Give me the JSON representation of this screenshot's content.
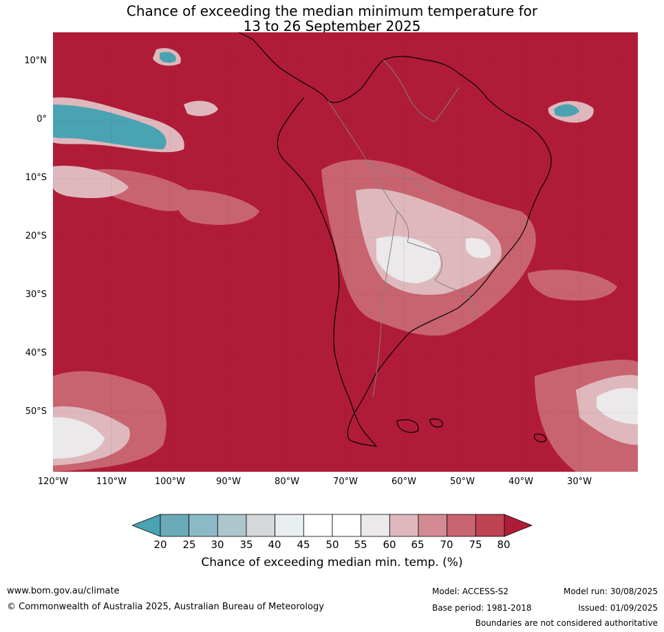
{
  "title": {
    "line1": "Chance of exceeding the median minimum temperature for",
    "line2": "13 to 26 September 2025"
  },
  "lat_labels": [
    "10°N",
    "0°",
    "10°S",
    "20°S",
    "30°S",
    "40°S",
    "50°S"
  ],
  "lon_labels": [
    "120°W",
    "110°W",
    "100°W",
    "90°W",
    "80°W",
    "70°W",
    "60°W",
    "50°W",
    "40°W",
    "30°W"
  ],
  "colorbar": {
    "ticks": [
      "20",
      "25",
      "30",
      "35",
      "40",
      "45",
      "50",
      "55",
      "60",
      "65",
      "70",
      "75",
      "80"
    ],
    "colors": [
      "#4aa3b2",
      "#6aaab8",
      "#8bbac6",
      "#acc6cc",
      "#d4d8da",
      "#e9eff1",
      "#ffffff",
      "#ffffff",
      "#ebe9ea",
      "#dfb8bd",
      "#d48a93",
      "#c8646f",
      "#be4452",
      "#b01c38"
    ],
    "label": "Chance of exceeding median min. temp. (%)"
  },
  "map_colors": {
    "high": "#b01c38",
    "mid_high": "#c8646f",
    "mid": "#dfb8bd",
    "neutral": "#ebe9ea",
    "low": "#4aa3b2",
    "land_outline": "#000000",
    "borders": "#808080"
  },
  "footer": {
    "website": "www.bom.gov.au/climate",
    "copyright": "© Commonwealth of Australia 2025, Australian Bureau of Meteorology",
    "model": "Model: ACCESS-S2",
    "base_period": "Base period: 1981-2018",
    "model_run": "Model run: 30/08/2025",
    "issued": "Issued: 01/09/2025",
    "disclaimer": "Boundaries are not considered authoritative"
  }
}
